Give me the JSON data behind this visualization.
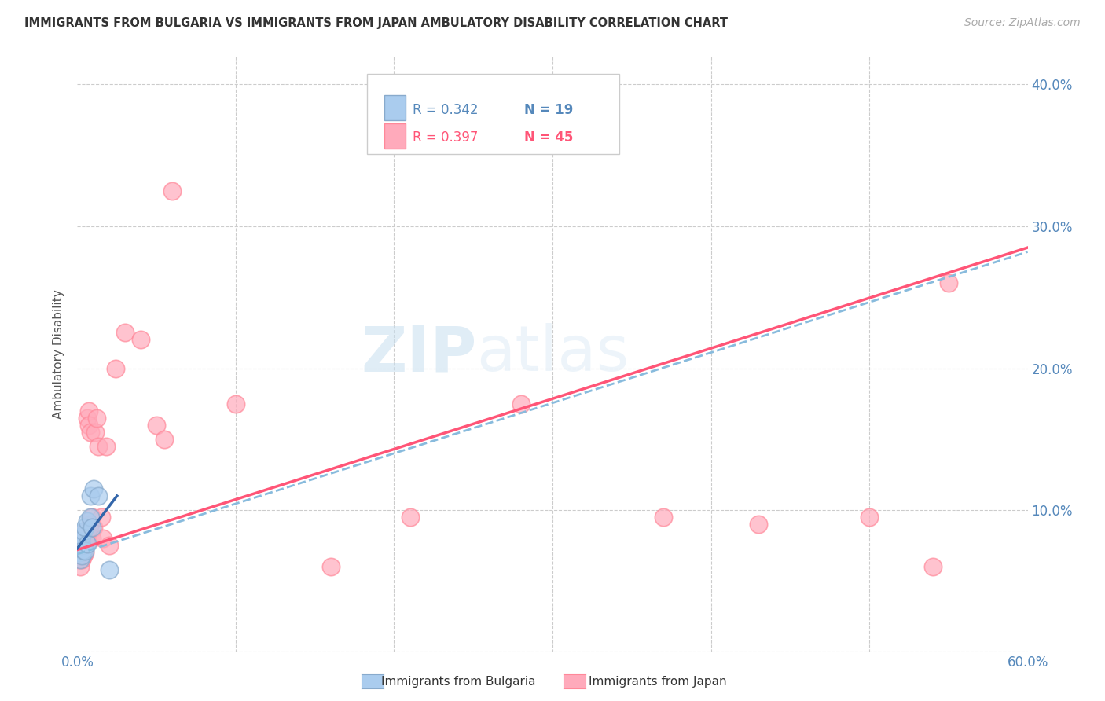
{
  "title": "IMMIGRANTS FROM BULGARIA VS IMMIGRANTS FROM JAPAN AMBULATORY DISABILITY CORRELATION CHART",
  "source": "Source: ZipAtlas.com",
  "ylabel": "Ambulatory Disability",
  "xlim": [
    0.0,
    0.6
  ],
  "ylim": [
    0.0,
    0.42
  ],
  "xticks": [
    0.0,
    0.1,
    0.2,
    0.3,
    0.4,
    0.5,
    0.6
  ],
  "xticklabels": [
    "0.0%",
    "",
    "",
    "",
    "",
    "",
    "60.0%"
  ],
  "yticks_right": [
    0.0,
    0.1,
    0.2,
    0.3,
    0.4
  ],
  "yticklabels_right": [
    "",
    "10.0%",
    "20.0%",
    "30.0%",
    "40.0%"
  ],
  "bg_color": "#ffffff",
  "grid_color": "#cccccc",
  "watermark_zip": "ZIP",
  "watermark_atlas": "atlas",
  "legend_r1": "R = 0.342",
  "legend_n1": "N = 19",
  "legend_r2": "R = 0.397",
  "legend_n2": "N = 45",
  "bulgaria_color": "#aaccee",
  "japan_color": "#ffaabb",
  "bulgaria_edge_color": "#88aacc",
  "japan_edge_color": "#ff8899",
  "bulgaria_line_color": "#3366aa",
  "japan_line_color": "#ff5577",
  "bulgaria_dash_color": "#88bbdd",
  "bulgaria_x": [
    0.001,
    0.002,
    0.002,
    0.002,
    0.003,
    0.003,
    0.003,
    0.004,
    0.004,
    0.005,
    0.005,
    0.006,
    0.006,
    0.008,
    0.008,
    0.009,
    0.01,
    0.013,
    0.02
  ],
  "bulgaria_y": [
    0.07,
    0.065,
    0.073,
    0.078,
    0.068,
    0.075,
    0.082,
    0.072,
    0.085,
    0.071,
    0.088,
    0.076,
    0.092,
    0.095,
    0.11,
    0.088,
    0.115,
    0.11,
    0.058
  ],
  "japan_x": [
    0.001,
    0.001,
    0.002,
    0.002,
    0.002,
    0.003,
    0.003,
    0.003,
    0.004,
    0.004,
    0.004,
    0.005,
    0.005,
    0.005,
    0.006,
    0.006,
    0.007,
    0.007,
    0.008,
    0.008,
    0.009,
    0.009,
    0.01,
    0.011,
    0.012,
    0.013,
    0.015,
    0.016,
    0.018,
    0.02,
    0.024,
    0.03,
    0.04,
    0.05,
    0.055,
    0.06,
    0.1,
    0.16,
    0.21,
    0.28,
    0.37,
    0.43,
    0.5,
    0.54,
    0.55
  ],
  "japan_y": [
    0.065,
    0.07,
    0.068,
    0.072,
    0.06,
    0.07,
    0.065,
    0.078,
    0.068,
    0.072,
    0.08,
    0.07,
    0.078,
    0.085,
    0.08,
    0.165,
    0.17,
    0.16,
    0.09,
    0.155,
    0.08,
    0.095,
    0.088,
    0.155,
    0.165,
    0.145,
    0.095,
    0.08,
    0.145,
    0.075,
    0.2,
    0.225,
    0.22,
    0.16,
    0.15,
    0.325,
    0.175,
    0.06,
    0.095,
    0.175,
    0.095,
    0.09,
    0.095,
    0.06,
    0.26
  ],
  "bulgaria_trendline_x": [
    0.0,
    0.025
  ],
  "bulgaria_trendline_y": [
    0.073,
    0.11
  ],
  "japan_trendline_intercept": 0.072,
  "japan_trendline_slope": 0.355,
  "bulgaria_dash_intercept": 0.069,
  "bulgaria_dash_slope": 0.355
}
